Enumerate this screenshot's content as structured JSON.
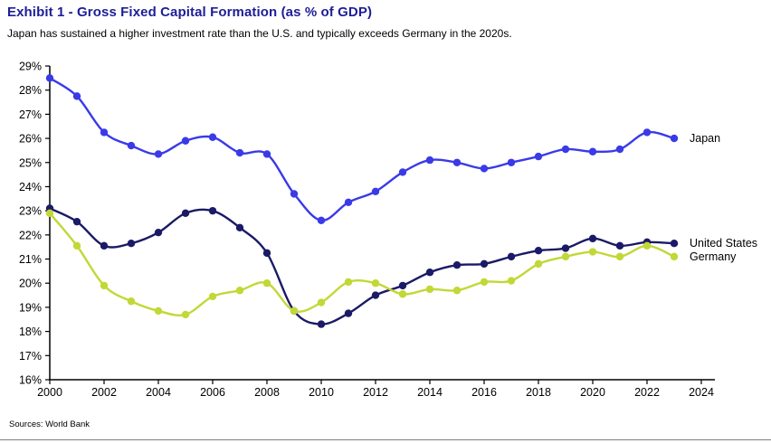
{
  "header": {
    "title": "Exhibit 1 - Gross Fixed Capital Formation (as % of GDP)",
    "title_color": "#1d1d99",
    "subtitle": "Japan has sustained a higher investment rate than the U.S. and typically exceeds Germany in the 2020s."
  },
  "footer": {
    "source": "Sources: World Bank"
  },
  "chart_data": {
    "type": "line",
    "title": "Exhibit 1 - Gross Fixed Capital Formation (as % of GDP)",
    "xlabel": "",
    "ylabel": "",
    "x": [
      2000,
      2001,
      2002,
      2003,
      2004,
      2005,
      2006,
      2007,
      2008,
      2009,
      2010,
      2011,
      2012,
      2013,
      2014,
      2015,
      2016,
      2017,
      2018,
      2019,
      2020,
      2021,
      2022,
      2023
    ],
    "series": [
      {
        "name": "Japan",
        "color": "#3a3ae8",
        "values": [
          28.5,
          27.75,
          26.25,
          25.7,
          25.35,
          25.9,
          26.05,
          25.4,
          25.35,
          23.7,
          22.6,
          23.35,
          23.8,
          24.6,
          25.1,
          25.0,
          24.75,
          25.0,
          25.25,
          25.55,
          25.45,
          25.55,
          26.25,
          26.0
        ]
      },
      {
        "name": "United States",
        "color": "#1a1a66",
        "values": [
          23.1,
          22.55,
          21.55,
          21.65,
          22.1,
          22.9,
          23.0,
          22.3,
          21.25,
          18.85,
          18.3,
          18.75,
          19.5,
          19.9,
          20.45,
          20.75,
          20.8,
          21.1,
          21.35,
          21.45,
          21.85,
          21.55,
          21.7,
          21.65
        ]
      },
      {
        "name": "Germany",
        "color": "#c2d836",
        "values": [
          22.9,
          21.55,
          19.9,
          19.25,
          18.85,
          18.7,
          19.45,
          19.7,
          20.0,
          18.85,
          19.2,
          20.05,
          20.0,
          19.55,
          19.75,
          19.7,
          20.05,
          20.1,
          20.8,
          21.1,
          21.3,
          21.1,
          21.55,
          21.1
        ]
      }
    ],
    "ylim": [
      16,
      29
    ],
    "xlim": [
      2000,
      2024
    ],
    "yticks": [
      16,
      17,
      18,
      19,
      20,
      21,
      22,
      23,
      24,
      25,
      26,
      27,
      28,
      29
    ],
    "ytick_suffix": "%",
    "xticks": [
      2000,
      2002,
      2004,
      2006,
      2008,
      2010,
      2012,
      2014,
      2016,
      2018,
      2020,
      2022,
      2024
    ],
    "grid": false,
    "legend_position": "right-of-line-end",
    "marker": "circle",
    "smooth": true
  }
}
